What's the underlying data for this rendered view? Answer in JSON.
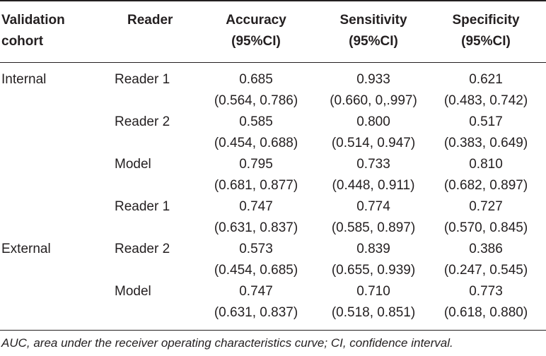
{
  "header": {
    "cohort": [
      "Validation",
      "cohort"
    ],
    "reader": "Reader",
    "accuracy": [
      "Accuracy",
      "(95%CI)"
    ],
    "sensitivity": [
      "Sensitivity",
      "(95%CI)"
    ],
    "specificity": [
      "Specificity",
      "(95%CI)"
    ]
  },
  "rows": [
    {
      "cohort": "Internal",
      "reader": "Reader 1",
      "acc": [
        "0.685",
        "(0.564, 0.786)"
      ],
      "sen": [
        "0.933",
        "(0.660, 0,.997)"
      ],
      "spe": [
        "0.621",
        "(0.483, 0.742)"
      ]
    },
    {
      "cohort": "",
      "reader": "Reader 2",
      "acc": [
        "0.585",
        "(0.454, 0.688)"
      ],
      "sen": [
        "0.800",
        "(0.514, 0.947)"
      ],
      "spe": [
        "0.517",
        "(0.383, 0.649)"
      ]
    },
    {
      "cohort": "",
      "reader": "Model",
      "acc": [
        "0.795",
        "(0.681, 0.877)"
      ],
      "sen": [
        "0.733",
        "(0.448, 0.911)"
      ],
      "spe": [
        "0.810",
        "(0.682, 0.897)"
      ]
    },
    {
      "cohort": "",
      "reader": "Reader 1",
      "acc": [
        "0.747",
        "(0.631, 0.837)"
      ],
      "sen": [
        "0.774",
        "(0.585, 0.897)"
      ],
      "spe": [
        "0.727",
        "(0.570, 0.845)"
      ]
    },
    {
      "cohort": "External",
      "reader": "Reader 2",
      "acc": [
        "0.573",
        "(0.454, 0.685)"
      ],
      "sen": [
        "0.839",
        "(0.655, 0.939)"
      ],
      "spe": [
        "0.386",
        "(0.247, 0.545)"
      ]
    },
    {
      "cohort": "",
      "reader": "Model",
      "acc": [
        "0.747",
        "(0.631, 0.837)"
      ],
      "sen": [
        "0.710",
        "(0.518, 0.851)"
      ],
      "spe": [
        "0.773",
        "(0.618, 0.880)"
      ]
    }
  ],
  "footnote": "AUC, area under the receiver operating characteristics curve; CI, confidence interval."
}
